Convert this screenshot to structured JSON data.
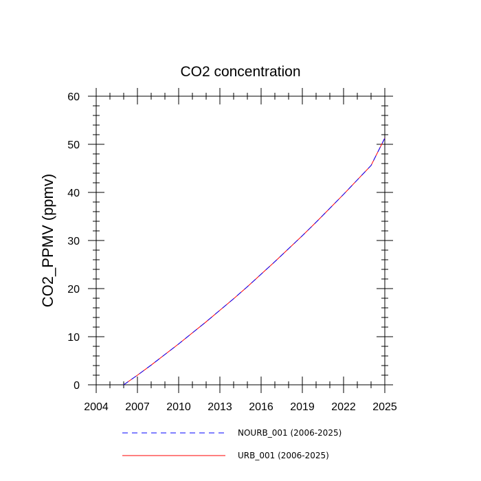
{
  "chart_data": {
    "type": "line",
    "title": "CO2 concentration",
    "xlabel": "",
    "ylabel": "CO2_PPMV  (ppmv)",
    "xlim": [
      2004,
      2025
    ],
    "ylim": [
      0,
      60
    ],
    "xticks": [
      2004,
      2007,
      2010,
      2013,
      2016,
      2019,
      2022,
      2025
    ],
    "yticks": [
      0,
      10,
      20,
      30,
      40,
      50,
      60
    ],
    "x": [
      2006,
      2007,
      2008,
      2009,
      2010,
      2011,
      2012,
      2013,
      2014,
      2015,
      2016,
      2017,
      2018,
      2019,
      2020,
      2021,
      2022,
      2023,
      2024,
      2025
    ],
    "series": [
      {
        "name": "NOURB_001 (2006-2025)",
        "color": "#0000ff",
        "style": "dashed",
        "values": [
          0.0,
          2.0,
          4.1,
          6.3,
          8.5,
          10.8,
          13.1,
          15.5,
          17.9,
          20.4,
          23.0,
          25.6,
          28.3,
          31.0,
          33.8,
          36.7,
          39.6,
          42.6,
          45.6,
          51.3
        ]
      },
      {
        "name": "URB_001 (2006-2025)",
        "color": "#ff0000",
        "style": "solid",
        "values": [
          0.0,
          2.0,
          4.1,
          6.3,
          8.5,
          10.8,
          13.1,
          15.5,
          17.9,
          20.4,
          23.0,
          25.6,
          28.3,
          31.0,
          33.8,
          36.7,
          39.6,
          42.6,
          45.6,
          51.3
        ]
      }
    ],
    "legend": "bottom"
  }
}
